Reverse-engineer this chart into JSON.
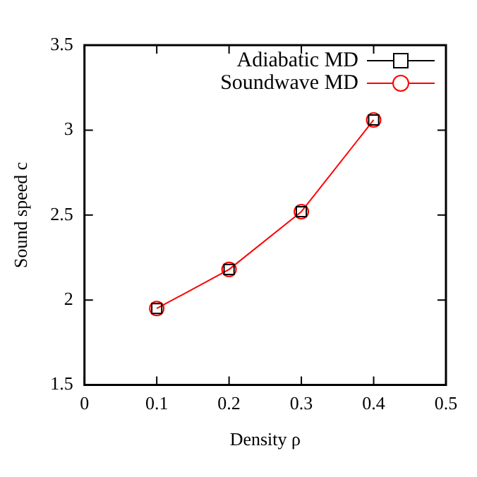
{
  "chart_data": {
    "type": "line",
    "xlabel": "Density ρ",
    "ylabel": "Sound speed c",
    "x": [
      0.1,
      0.2,
      0.3,
      0.4
    ],
    "series": [
      {
        "name": "Adiabatic MD",
        "color": "#000000",
        "type": "scatter",
        "marker": "square",
        "values": [
          1.95,
          2.18,
          2.52,
          3.06
        ]
      },
      {
        "name": "Soundwave MD",
        "color": "#ff0000",
        "type": "line",
        "marker": "circle",
        "values": [
          1.95,
          2.18,
          2.52,
          3.06
        ]
      }
    ],
    "xlim": [
      0,
      0.5
    ],
    "xticks": [
      0,
      0.1,
      0.2,
      0.3,
      0.4,
      0.5
    ],
    "ylim": [
      1.5,
      3.5
    ],
    "yticks": [
      1.5,
      2,
      2.5,
      3,
      3.5
    ],
    "grid": false,
    "legend": "top right"
  }
}
